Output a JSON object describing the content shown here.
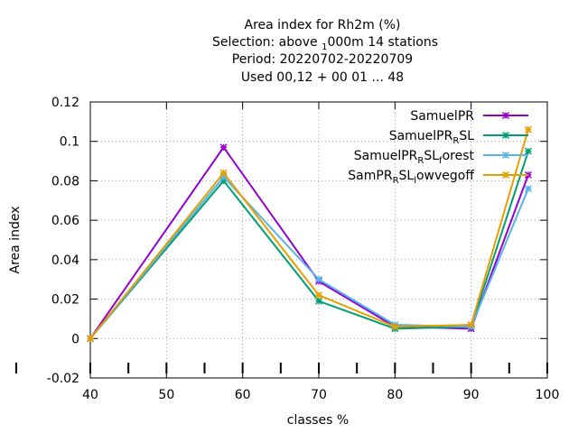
{
  "chart_data": {
    "type": "line",
    "title_lines": [
      "Area index  for Rh2m (%)",
      "Selection: above ",
      "Period: 20220702-20220709",
      "Used  00,12  + 00 01 ... 48"
    ],
    "title_sel_sub": "1",
    "title_sel_rest": "000m     14 stations",
    "xlabel": "classes %",
    "ylabel": "Area index",
    "xlim": [
      40,
      100
    ],
    "ylim": [
      -0.02,
      0.12
    ],
    "xticks": [
      40,
      50,
      60,
      70,
      80,
      90,
      100
    ],
    "yticks": [
      -0.02,
      0,
      0.02,
      0.04,
      0.06,
      0.08,
      0.1,
      0.12
    ],
    "ytick_labels": [
      "-0.02",
      "0",
      "0.02",
      "0.04",
      "0.06",
      "0.08",
      "0.1",
      "0.12"
    ],
    "grid": true,
    "legend_position": "top-right",
    "x": [
      40,
      57.5,
      70,
      80,
      90,
      97.5
    ],
    "series": [
      {
        "name_base": "SamuelPR",
        "name_sub": "",
        "name_rest": "",
        "name_sub2": "",
        "name_rest2": "",
        "color": "#9400d3",
        "values": [
          0,
          0.097,
          0.029,
          0.006,
          0.005,
          0.083
        ]
      },
      {
        "name_base": "SamuelPR",
        "name_sub": "R",
        "name_rest": "SL",
        "name_sub2": "",
        "name_rest2": "",
        "color": "#009e73",
        "values": [
          0,
          0.08,
          0.019,
          0.005,
          0.006,
          0.095
        ]
      },
      {
        "name_base": "SamuelPR",
        "name_sub": "R",
        "name_rest": "SL",
        "name_sub2": "f",
        "name_rest2": "orest",
        "color": "#56b4e9",
        "values": [
          0,
          0.082,
          0.03,
          0.007,
          0.006,
          0.076
        ]
      },
      {
        "name_base": "SamPR",
        "name_sub": "R",
        "name_rest": "SL",
        "name_sub2": "l",
        "name_rest2": "owvegoff",
        "color": "#e69f00",
        "values": [
          0,
          0.084,
          0.022,
          0.006,
          0.007,
          0.106
        ]
      }
    ]
  }
}
